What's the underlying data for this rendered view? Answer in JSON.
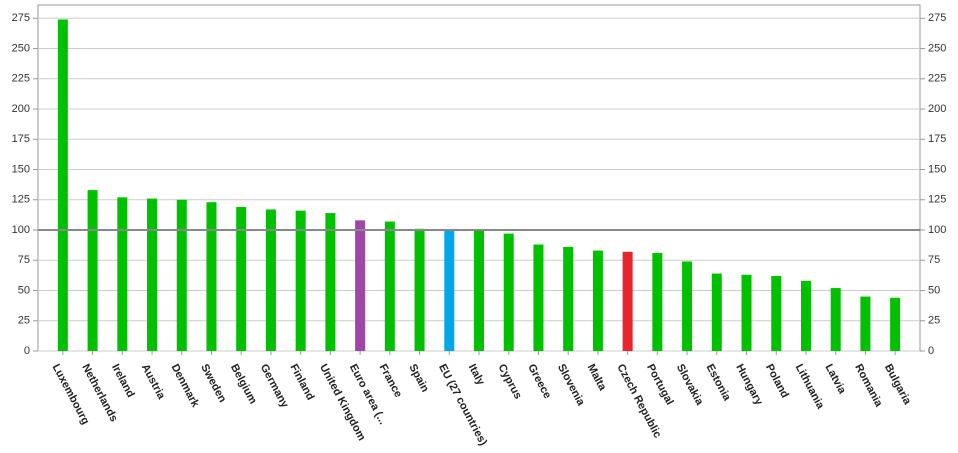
{
  "chart_data": {
    "type": "bar",
    "categories": [
      "Luxembourg",
      "Netherlands",
      "Ireland",
      "Austria",
      "Denmark",
      "Sweden",
      "Belgium",
      "Germany",
      "Finland",
      "United Kingdom",
      "Euro area (...",
      "France",
      "Spain",
      "EU (27 countries)",
      "Italy",
      "Cyprus",
      "Greece",
      "Slovenia",
      "Malta",
      "Czech Republic",
      "Portugal",
      "Slovakia",
      "Estonia",
      "Hungary",
      "Poland",
      "Lithuania",
      "Latvia",
      "Romania",
      "Bulgaria"
    ],
    "values": [
      274,
      133,
      127,
      126,
      125,
      123,
      119,
      117,
      116,
      114,
      108,
      107,
      101,
      100,
      100,
      97,
      88,
      86,
      83,
      82,
      81,
      74,
      64,
      63,
      62,
      58,
      52,
      45,
      44
    ],
    "colors": [
      "#00c000",
      "#00c000",
      "#00c000",
      "#00c000",
      "#00c000",
      "#00c000",
      "#00c000",
      "#00c000",
      "#00c000",
      "#00c000",
      "#a046a8",
      "#00c000",
      "#00c000",
      "#00a8e8",
      "#00c000",
      "#00c000",
      "#00c000",
      "#00c000",
      "#00c000",
      "#e8242c",
      "#00c000",
      "#00c000",
      "#00c000",
      "#00c000",
      "#00c000",
      "#00c000",
      "#00c000",
      "#00c000",
      "#00c000"
    ],
    "ylim": [
      0,
      286
    ],
    "yticks": [
      0,
      25,
      50,
      75,
      100,
      125,
      150,
      175,
      200,
      225,
      250,
      275
    ],
    "reference_line": 100,
    "grid": true
  }
}
